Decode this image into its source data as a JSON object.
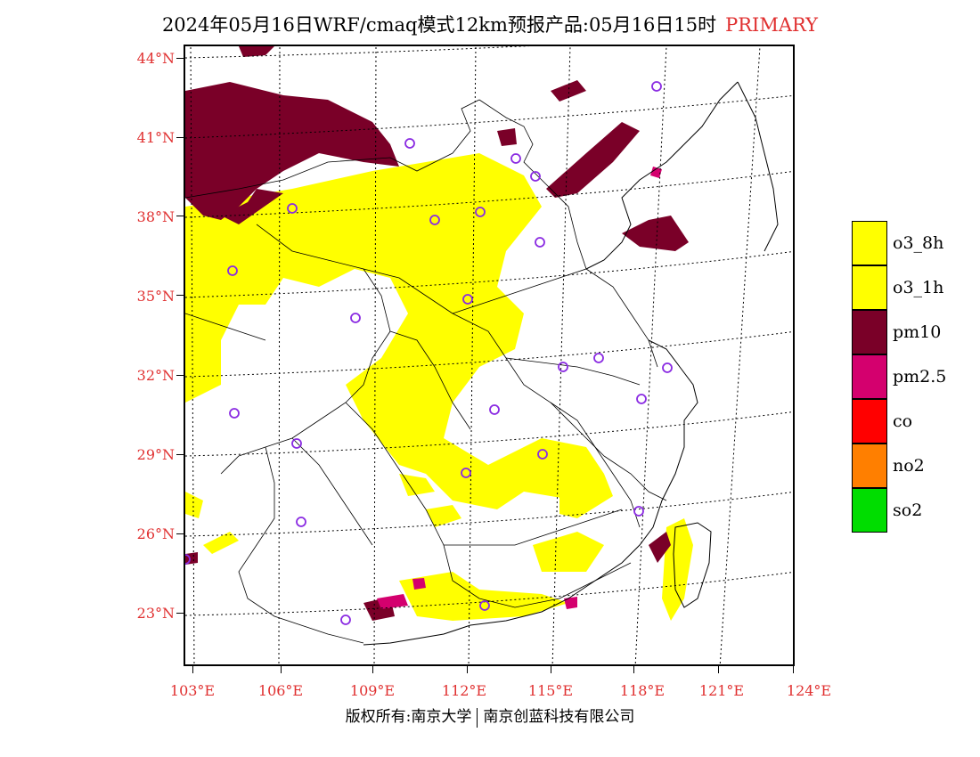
{
  "title": {
    "main": "2024年05月16日WRF/cmaq模式12km预报产品:05月16日15时",
    "tag": "PRIMARY"
  },
  "map": {
    "lat_labels": [
      "44°N",
      "41°N",
      "38°N",
      "35°N",
      "32°N",
      "29°N",
      "26°N",
      "23°N"
    ],
    "lon_labels": [
      "103°E",
      "106°E",
      "109°E",
      "112°E",
      "115°E",
      "118°E",
      "121°E",
      "124°E"
    ]
  },
  "legend": [
    {
      "label": "o3_8h",
      "color": "#ffff00"
    },
    {
      "label": "o3_1h",
      "color": "#ffff00"
    },
    {
      "label": "pm10",
      "color": "#7a0028"
    },
    {
      "label": "pm2.5",
      "color": "#d4006e"
    },
    {
      "label": "co",
      "color": "#ff0000"
    },
    {
      "label": "no2",
      "color": "#ff7f00"
    },
    {
      "label": "so2",
      "color": "#00dd00"
    }
  ],
  "colors": {
    "o3": "#ffff00",
    "pm10": "#7a0028",
    "pm25": "#d4006e",
    "station_marker": "#8a2be2",
    "label_red": "#e03030"
  },
  "copyright": {
    "left": "版权所有:南京大学",
    "right": "南京创蓝科技有限公司"
  }
}
